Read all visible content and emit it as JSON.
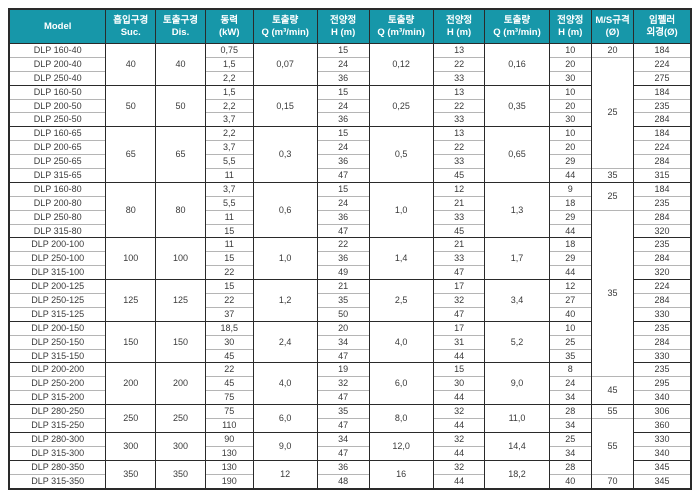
{
  "theme": {
    "header_bg": "#1797a9",
    "header_fg": "#ffffff",
    "border_dark": "#2a2a2a",
    "border_light": "#b5b5b5"
  },
  "table": {
    "title": "DLP pump specification table",
    "columns": [
      {
        "id": "model",
        "line1": "Model",
        "line2": ""
      },
      {
        "id": "suction",
        "line1": "흡입구경",
        "line2": "Suc."
      },
      {
        "id": "discharge",
        "line1": "토출구경",
        "line2": "Dis."
      },
      {
        "id": "power",
        "line1": "동력",
        "line2": "(kW)"
      },
      {
        "id": "flow-1",
        "line1": "토출량",
        "line2": "Q (m³/min)"
      },
      {
        "id": "head-1",
        "line1": "전양정",
        "line2": "H (m)"
      },
      {
        "id": "flow-2",
        "line1": "토출량",
        "line2": "Q (m³/min)"
      },
      {
        "id": "head-2",
        "line1": "전양정",
        "line2": "H (m)"
      },
      {
        "id": "flow-3",
        "line1": "토출량",
        "line2": "Q (m³/min)"
      },
      {
        "id": "head-3",
        "line1": "전양정",
        "line2": "H (m)"
      },
      {
        "id": "ms-spec",
        "line1": "M/S규격",
        "line2": "(Ø)"
      },
      {
        "id": "impeller-od",
        "line1": "임펠러",
        "line2": "외경(Ø)"
      }
    ],
    "rows": [
      {
        "g": true,
        "c": [
          "DLP 160-40",
          [
            "40",
            3
          ],
          [
            "40",
            3
          ],
          "0,75",
          [
            "0,07",
            3
          ],
          "15",
          [
            "0,12",
            3
          ],
          "13",
          [
            "0,16",
            3
          ],
          "10",
          [
            "20",
            1
          ],
          "184"
        ]
      },
      {
        "g": false,
        "c": [
          "DLP 200-40",
          null,
          null,
          "1,5",
          null,
          "24",
          null,
          "22",
          null,
          "20",
          [
            "25",
            8
          ],
          "224"
        ]
      },
      {
        "g": false,
        "c": [
          "DLP 250-40",
          null,
          null,
          "2,2",
          null,
          "36",
          null,
          "33",
          null,
          "30",
          null,
          "275"
        ]
      },
      {
        "g": true,
        "c": [
          "DLP 160-50",
          [
            "50",
            3
          ],
          [
            "50",
            3
          ],
          "1,5",
          [
            "0,15",
            3
          ],
          "15",
          [
            "0,25",
            3
          ],
          "13",
          [
            "0,35",
            3
          ],
          "10",
          null,
          "184"
        ]
      },
      {
        "g": false,
        "c": [
          "DLP 200-50",
          null,
          null,
          "2,2",
          null,
          "24",
          null,
          "22",
          null,
          "20",
          null,
          "235"
        ]
      },
      {
        "g": false,
        "c": [
          "DLP 250-50",
          null,
          null,
          "3,7",
          null,
          "36",
          null,
          "33",
          null,
          "30",
          null,
          "284"
        ]
      },
      {
        "g": true,
        "c": [
          "DLP 160-65",
          [
            "65",
            4
          ],
          [
            "65",
            4
          ],
          "2,2",
          [
            "0,3",
            4
          ],
          "15",
          [
            "0,5",
            4
          ],
          "13",
          [
            "0,65",
            4
          ],
          "10",
          null,
          "184"
        ]
      },
      {
        "g": false,
        "c": [
          "DLP 200-65",
          null,
          null,
          "3,7",
          null,
          "24",
          null,
          "22",
          null,
          "20",
          null,
          "224"
        ]
      },
      {
        "g": false,
        "c": [
          "DLP 250-65",
          null,
          null,
          "5,5",
          null,
          "36",
          null,
          "33",
          null,
          "29",
          null,
          "284"
        ]
      },
      {
        "g": false,
        "c": [
          "DLP 315-65",
          null,
          null,
          "11",
          null,
          "47",
          null,
          "45",
          null,
          "44",
          [
            "35",
            1
          ],
          "315"
        ]
      },
      {
        "g": true,
        "c": [
          "DLP 160-80",
          [
            "80",
            4
          ],
          [
            "80",
            4
          ],
          "3,7",
          [
            "0,6",
            4
          ],
          "15",
          [
            "1,0",
            4
          ],
          "12",
          [
            "1,3",
            4
          ],
          "9",
          [
            "25",
            2
          ],
          "184"
        ]
      },
      {
        "g": false,
        "c": [
          "DLP 200-80",
          null,
          null,
          "5,5",
          null,
          "24",
          null,
          "21",
          null,
          "18",
          null,
          "235"
        ]
      },
      {
        "g": false,
        "c": [
          "DLP 250-80",
          null,
          null,
          "11",
          null,
          "36",
          null,
          "33",
          null,
          "29",
          [
            "35",
            12
          ],
          "284"
        ]
      },
      {
        "g": false,
        "c": [
          "DLP 315-80",
          null,
          null,
          "15",
          null,
          "47",
          null,
          "45",
          null,
          "44",
          null,
          "320"
        ]
      },
      {
        "g": true,
        "c": [
          "DLP 200-100",
          [
            "100",
            3
          ],
          [
            "100",
            3
          ],
          "11",
          [
            "1,0",
            3
          ],
          "22",
          [
            "1,4",
            3
          ],
          "21",
          [
            "1,7",
            3
          ],
          "18",
          null,
          "235"
        ]
      },
      {
        "g": false,
        "c": [
          "DLP 250-100",
          null,
          null,
          "15",
          null,
          "36",
          null,
          "33",
          null,
          "29",
          null,
          "284"
        ]
      },
      {
        "g": false,
        "c": [
          "DLP 315-100",
          null,
          null,
          "22",
          null,
          "49",
          null,
          "47",
          null,
          "44",
          null,
          "320"
        ]
      },
      {
        "g": true,
        "c": [
          "DLP 200-125",
          [
            "125",
            3
          ],
          [
            "125",
            3
          ],
          "15",
          [
            "1,2",
            3
          ],
          "21",
          [
            "2,5",
            3
          ],
          "17",
          [
            "3,4",
            3
          ],
          "12",
          null,
          "224"
        ]
      },
      {
        "g": false,
        "c": [
          "DLP 250-125",
          null,
          null,
          "22",
          null,
          "35",
          null,
          "32",
          null,
          "27",
          null,
          "284"
        ]
      },
      {
        "g": false,
        "c": [
          "DLP 315-125",
          null,
          null,
          "37",
          null,
          "50",
          null,
          "47",
          null,
          "40",
          null,
          "330"
        ]
      },
      {
        "g": true,
        "c": [
          "DLP 200-150",
          [
            "150",
            3
          ],
          [
            "150",
            3
          ],
          "18,5",
          [
            "2,4",
            3
          ],
          "20",
          [
            "4,0",
            3
          ],
          "17",
          [
            "5,2",
            3
          ],
          "10",
          null,
          "235"
        ]
      },
      {
        "g": false,
        "c": [
          "DLP 250-150",
          null,
          null,
          "30",
          null,
          "34",
          null,
          "31",
          null,
          "25",
          null,
          "284"
        ]
      },
      {
        "g": false,
        "c": [
          "DLP 315-150",
          null,
          null,
          "45",
          null,
          "47",
          null,
          "44",
          null,
          "35",
          null,
          "330"
        ]
      },
      {
        "g": true,
        "c": [
          "DLP 200-200",
          [
            "200",
            3
          ],
          [
            "200",
            3
          ],
          "22",
          [
            "4,0",
            3
          ],
          "19",
          [
            "6,0",
            3
          ],
          "15",
          [
            "9,0",
            3
          ],
          "8",
          null,
          "235"
        ]
      },
      {
        "g": false,
        "c": [
          "DLP 250-200",
          null,
          null,
          "45",
          null,
          "32",
          null,
          "30",
          null,
          "24",
          [
            "45",
            2
          ],
          "295"
        ]
      },
      {
        "g": false,
        "c": [
          "DLP 315-200",
          null,
          null,
          "75",
          null,
          "47",
          null,
          "44",
          null,
          "34",
          null,
          "340"
        ]
      },
      {
        "g": true,
        "c": [
          "DLP 280-250",
          [
            "250",
            2
          ],
          [
            "250",
            2
          ],
          "75",
          [
            "6,0",
            2
          ],
          "35",
          [
            "8,0",
            2
          ],
          "32",
          [
            "11,0",
            2
          ],
          "28",
          [
            "55",
            1
          ],
          "306"
        ]
      },
      {
        "g": false,
        "c": [
          "DLP 315-250",
          null,
          null,
          "110",
          null,
          "47",
          null,
          "44",
          null,
          "34",
          [
            "55",
            4
          ],
          "360"
        ]
      },
      {
        "g": true,
        "c": [
          "DLP 280-300",
          [
            "300",
            2
          ],
          [
            "300",
            2
          ],
          "90",
          [
            "9,0",
            2
          ],
          "34",
          [
            "12,0",
            2
          ],
          "32",
          [
            "14,4",
            2
          ],
          "25",
          null,
          "330"
        ]
      },
      {
        "g": false,
        "c": [
          "DLP 315-300",
          null,
          null,
          "130",
          null,
          "47",
          null,
          "44",
          null,
          "34",
          null,
          "340"
        ]
      },
      {
        "g": true,
        "c": [
          "DLP 280-350",
          [
            "350",
            2
          ],
          [
            "350",
            2
          ],
          "130",
          [
            "12",
            2
          ],
          "36",
          [
            "16",
            2
          ],
          "32",
          [
            "18,2",
            2
          ],
          "28",
          null,
          "345"
        ]
      },
      {
        "g": false,
        "c": [
          "DLP 315-350",
          null,
          null,
          "190",
          null,
          "48",
          null,
          "44",
          null,
          "40",
          [
            "70",
            1
          ],
          "345"
        ]
      }
    ]
  }
}
